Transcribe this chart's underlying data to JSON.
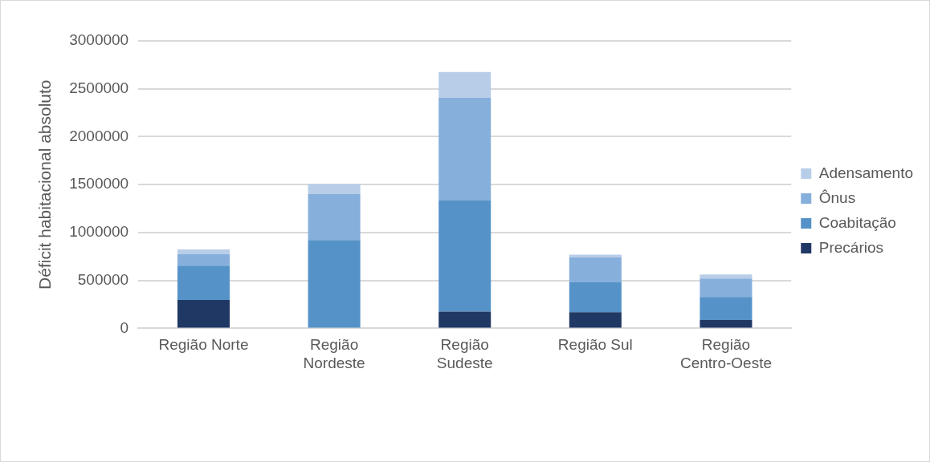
{
  "chart_data": {
    "type": "bar",
    "stacked": true,
    "ylabel": "Déficit habitacional absoluto",
    "categories": [
      "Região Norte",
      "Região Nordeste",
      "Região Sudeste",
      "Região Sul",
      "Região Centro-Oeste"
    ],
    "series": [
      {
        "name": "Precários",
        "color": "#203864",
        "values": [
          297000,
          0,
          175000,
          168000,
          87000
        ]
      },
      {
        "name": "Coabitação",
        "color": "#5592c8",
        "values": [
          358000,
          922000,
          1164000,
          312000,
          241000
        ]
      },
      {
        "name": "Ônus",
        "color": "#86afdc",
        "values": [
          120000,
          480000,
          1067000,
          259000,
          193000
        ]
      },
      {
        "name": "Adensamento",
        "color": "#b8cde8",
        "values": [
          48000,
          105000,
          269000,
          31000,
          41000
        ]
      }
    ],
    "ylim": [
      0,
      3000000
    ],
    "yticks": [
      0,
      500000,
      1000000,
      1500000,
      2000000,
      2500000,
      3000000
    ],
    "grid": "y",
    "legend": "right"
  }
}
